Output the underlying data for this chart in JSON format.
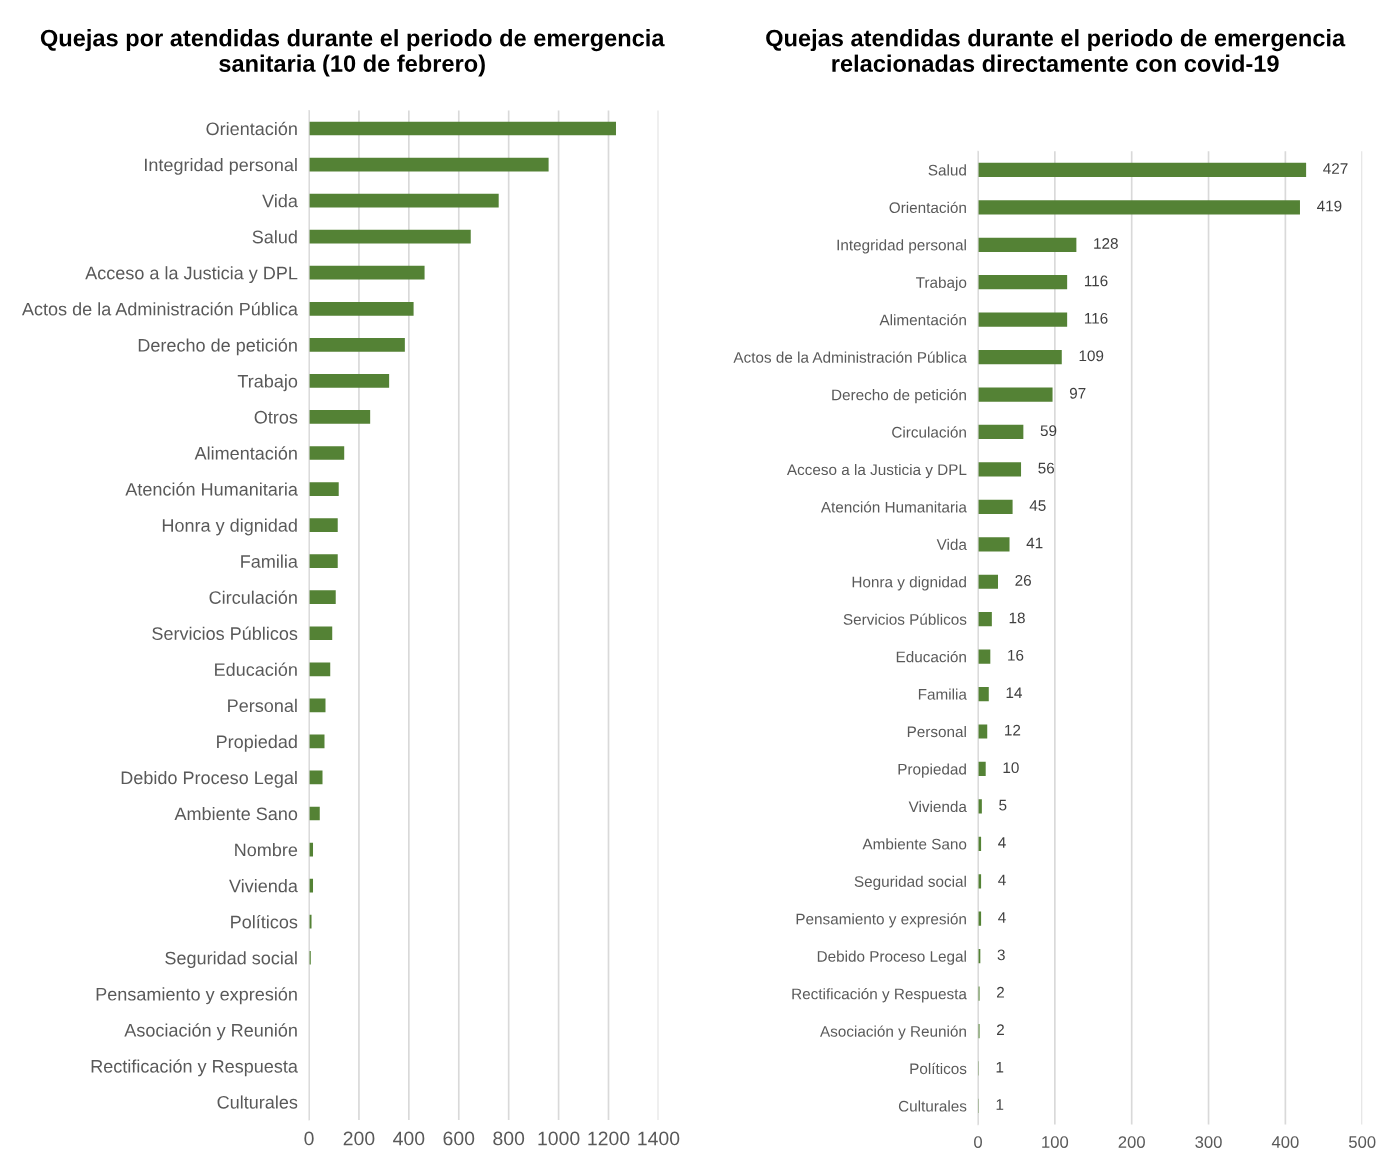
{
  "chart_data": [
    {
      "type": "bar",
      "orientation": "horizontal",
      "title": "Quejas por atendidas durante el periodo de emergencia sanitaria (10 de febrero)",
      "categories": [
        "Orientación",
        "Integridad personal",
        "Vida",
        "Salud",
        "Acceso a la Justicia y DPL",
        "Actos de la Administración Pública",
        "Derecho de petición",
        "Trabajo",
        "Otros",
        "Alimentación",
        "Atención Humanitaria",
        "Honra y dignidad",
        "Familia",
        "Circulación",
        "Servicios Públicos",
        "Educación",
        "Personal",
        "Propiedad",
        "Debido Proceso Legal",
        "Ambiente Sano",
        "Nombre",
        "Vivienda",
        "Políticos",
        "Seguridad social",
        "Pensamiento y expresión",
        "Asociación y Reunión",
        "Rectificación y Respuesta",
        "Culturales"
      ],
      "values": [
        1230,
        960,
        760,
        648,
        463,
        419,
        384,
        321,
        245,
        141,
        119,
        115,
        115,
        107,
        93,
        85,
        66,
        62,
        54,
        43,
        16,
        16,
        10,
        7,
        null,
        null,
        null,
        null
      ],
      "color": "#548235",
      "xlim": [
        0,
        1400
      ],
      "xticks": [
        0,
        200,
        400,
        600,
        800,
        1000,
        1200,
        1400
      ],
      "grid": "x"
    },
    {
      "type": "bar",
      "orientation": "horizontal",
      "title": "Quejas atendidas durante el periodo de emergencia relacionadas directamente con covid-19",
      "categories": [
        "Salud",
        "Orientación",
        "Integridad personal",
        "Trabajo",
        "Alimentación",
        "Actos de la Administración Pública",
        "Derecho de petición",
        "Circulación",
        "Acceso a la Justicia y DPL",
        "Atención Humanitaria",
        "Vida",
        "Honra y dignidad",
        "Servicios Públicos",
        "Educación",
        "Familia",
        "Personal",
        "Propiedad",
        "Vivienda",
        "Ambiente Sano",
        "Seguridad social",
        "Pensamiento y expresión",
        "Debido Proceso Legal",
        "Rectificación y Respuesta",
        "Asociación y Reunión",
        "Políticos",
        "Culturales"
      ],
      "values": [
        427,
        419,
        128,
        116,
        116,
        109,
        97,
        59,
        56,
        45,
        41,
        26,
        18,
        16,
        14,
        12,
        10,
        5,
        4,
        4,
        4,
        3,
        2,
        2,
        1,
        1
      ],
      "color": "#548235",
      "xlim": [
        0,
        500
      ],
      "xticks": [
        0,
        100,
        200,
        300,
        400,
        500
      ],
      "grid": "x",
      "data_labels": true
    }
  ]
}
